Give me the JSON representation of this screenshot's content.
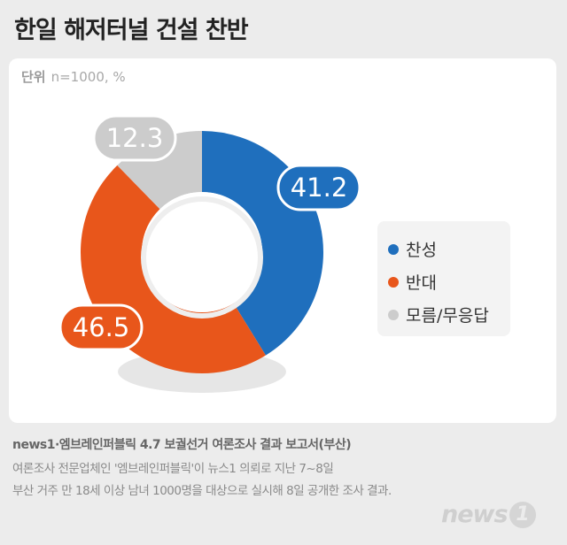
{
  "header": {
    "title": "한일 해저터널 건설 찬반"
  },
  "unit": {
    "label": "단위",
    "value": "n=1000, %"
  },
  "chart_data": {
    "type": "pie",
    "donut": true,
    "categories": [
      "찬성",
      "반대",
      "모름/무응답"
    ],
    "values": [
      41.2,
      46.5,
      12.3
    ],
    "value_labels": [
      "41.2",
      "46.5",
      "12.3"
    ],
    "colors": [
      "#1f6fbd",
      "#e8561b",
      "#cccccc"
    ],
    "title": "한일 해저터널 건설 찬반",
    "legend_position": "right"
  },
  "legend": [
    {
      "label": "찬성",
      "color": "#1f6fbd"
    },
    {
      "label": "반대",
      "color": "#e8561b"
    },
    {
      "label": "모름/무응답",
      "color": "#cccccc"
    }
  ],
  "footer": {
    "source": "news1·엠브레인퍼블릭 4.7 보궐선거 여론조사 결과 보고서(부산)",
    "note_line1": "여론조사 전문업체인 '엠브레인퍼블릭'이 뉴스1 의뢰로 지난 7~8일",
    "note_line2": "부산 거주 만 18세 이상 남녀 1000명을 대상으로 실시해 8일 공개한 조사 결과."
  },
  "logo": {
    "text": "news",
    "number": "1"
  }
}
